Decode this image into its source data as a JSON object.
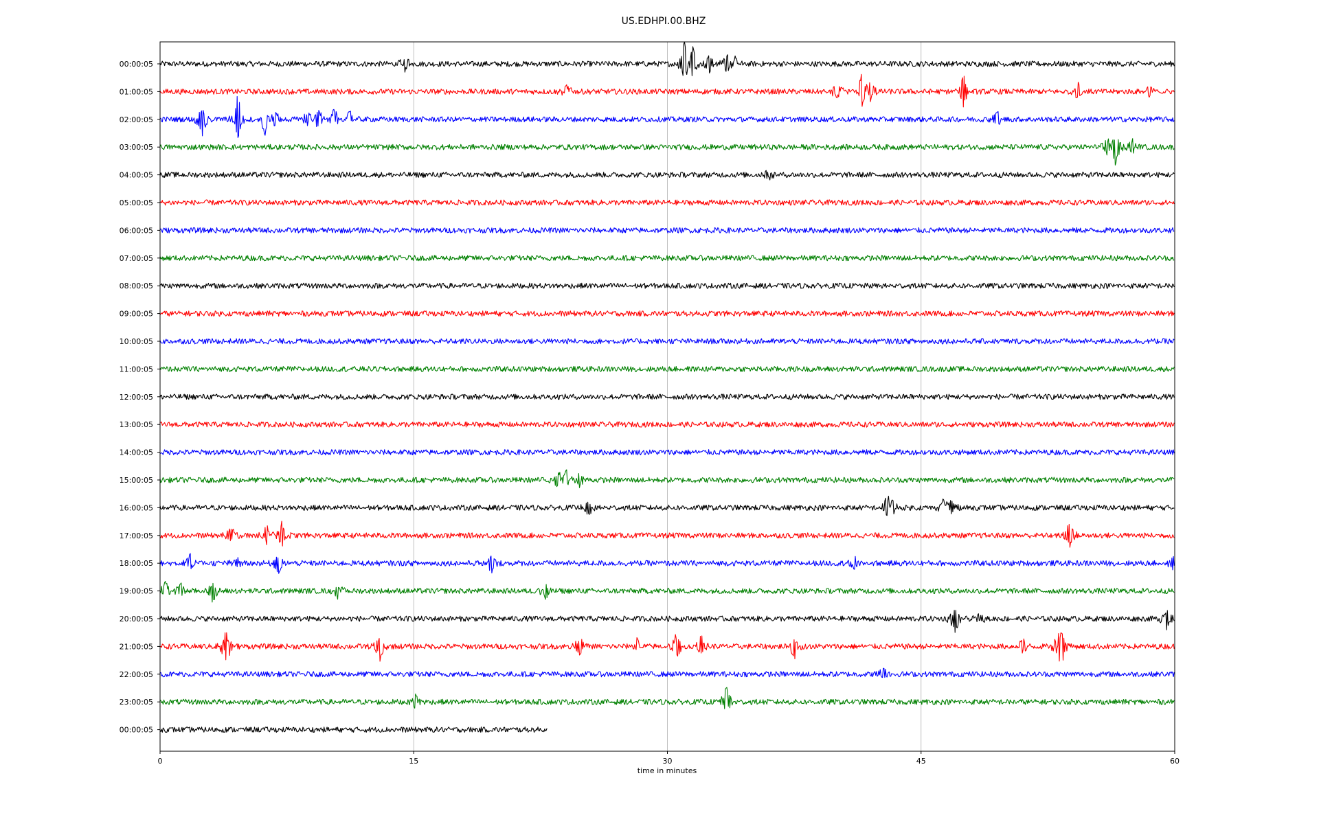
{
  "chart_data": {
    "type": "line",
    "title": "US.EDHPI.00.BHZ",
    "xlabel": "time in minutes",
    "ylabel": "",
    "xlim": [
      0,
      60
    ],
    "x_ticks": [
      "0",
      "15",
      "30",
      "45",
      "60"
    ],
    "grid": "vertical",
    "color_cycle": [
      "#000000",
      "#ff0000",
      "#0000ff",
      "#008000"
    ],
    "noise_amplitude": 1.0,
    "rows": [
      {
        "label": "00:00:05",
        "color": "#000000",
        "end_minute": 60,
        "events": [
          [
            14.5,
            5
          ],
          [
            31.0,
            12
          ],
          [
            31.5,
            8
          ],
          [
            32.5,
            6
          ],
          [
            33.5,
            5
          ],
          [
            34.0,
            3
          ]
        ]
      },
      {
        "label": "01:00:05",
        "color": "#ff0000",
        "end_minute": 60,
        "events": [
          [
            24.0,
            4
          ],
          [
            40.0,
            6
          ],
          [
            41.5,
            9
          ],
          [
            42.0,
            6
          ],
          [
            47.5,
            10
          ],
          [
            54.3,
            6
          ],
          [
            58.5,
            4
          ]
        ]
      },
      {
        "label": "02:00:05",
        "color": "#0000ff",
        "end_minute": 60,
        "events": [
          [
            2.5,
            -9
          ],
          [
            4.6,
            14
          ],
          [
            6.2,
            -8
          ],
          [
            6.8,
            5
          ],
          [
            8.7,
            4
          ],
          [
            9.4,
            -6
          ],
          [
            10.3,
            5
          ],
          [
            11.2,
            4
          ],
          [
            49.5,
            4
          ]
        ]
      },
      {
        "label": "03:00:05",
        "color": "#008000",
        "end_minute": 60,
        "events": [
          [
            56.0,
            4
          ],
          [
            56.5,
            -9
          ],
          [
            57.5,
            4
          ]
        ]
      },
      {
        "label": "04:00:05",
        "color": "#000000",
        "end_minute": 60,
        "events": [
          [
            36.0,
            3
          ]
        ]
      },
      {
        "label": "05:00:05",
        "color": "#ff0000",
        "end_minute": 60,
        "events": []
      },
      {
        "label": "06:00:05",
        "color": "#0000ff",
        "end_minute": 60,
        "events": []
      },
      {
        "label": "07:00:05",
        "color": "#008000",
        "end_minute": 60,
        "events": []
      },
      {
        "label": "08:00:05",
        "color": "#000000",
        "end_minute": 60,
        "events": []
      },
      {
        "label": "09:00:05",
        "color": "#ff0000",
        "end_minute": 60,
        "events": []
      },
      {
        "label": "10:00:05",
        "color": "#0000ff",
        "end_minute": 60,
        "events": []
      },
      {
        "label": "11:00:05",
        "color": "#008000",
        "end_minute": 60,
        "events": []
      },
      {
        "label": "12:00:05",
        "color": "#000000",
        "end_minute": 60,
        "events": []
      },
      {
        "label": "13:00:05",
        "color": "#ff0000",
        "end_minute": 60,
        "events": []
      },
      {
        "label": "14:00:05",
        "color": "#0000ff",
        "end_minute": 60,
        "events": []
      },
      {
        "label": "15:00:05",
        "color": "#008000",
        "end_minute": 60,
        "events": [
          [
            23.5,
            5
          ],
          [
            24.0,
            5
          ],
          [
            24.8,
            4
          ]
        ]
      },
      {
        "label": "16:00:05",
        "color": "#000000",
        "end_minute": 60,
        "events": [
          [
            25.3,
            -5
          ],
          [
            43.0,
            6
          ],
          [
            43.3,
            -5
          ],
          [
            46.3,
            5
          ],
          [
            46.8,
            4
          ]
        ]
      },
      {
        "label": "17:00:05",
        "color": "#ff0000",
        "end_minute": 60,
        "events": [
          [
            4.2,
            4
          ],
          [
            6.3,
            5
          ],
          [
            7.2,
            7
          ],
          [
            53.8,
            8
          ]
        ]
      },
      {
        "label": "18:00:05",
        "color": "#0000ff",
        "end_minute": 60,
        "events": [
          [
            1.8,
            4
          ],
          [
            4.5,
            3
          ],
          [
            7.0,
            -5
          ],
          [
            19.6,
            -5
          ],
          [
            41.0,
            4
          ],
          [
            59.9,
            5
          ]
        ]
      },
      {
        "label": "19:00:05",
        "color": "#008000",
        "end_minute": 60,
        "events": [
          [
            0.3,
            5
          ],
          [
            1.2,
            4
          ],
          [
            3.1,
            -6
          ],
          [
            10.5,
            4
          ],
          [
            22.8,
            -4
          ]
        ]
      },
      {
        "label": "20:00:05",
        "color": "#000000",
        "end_minute": 60,
        "events": [
          [
            47.0,
            -8
          ],
          [
            48.5,
            3
          ],
          [
            59.5,
            -6
          ]
        ]
      },
      {
        "label": "21:00:05",
        "color": "#ff0000",
        "end_minute": 60,
        "events": [
          [
            3.8,
            6
          ],
          [
            4.0,
            -7
          ],
          [
            13.0,
            -7
          ],
          [
            24.8,
            5
          ],
          [
            28.2,
            4
          ],
          [
            30.5,
            -8
          ],
          [
            32.0,
            5
          ],
          [
            37.5,
            -6
          ],
          [
            51.0,
            5
          ],
          [
            53.0,
            6
          ],
          [
            53.3,
            -12
          ]
        ]
      },
      {
        "label": "22:00:05",
        "color": "#0000ff",
        "end_minute": 60,
        "events": [
          [
            42.8,
            4
          ]
        ]
      },
      {
        "label": "23:00:05",
        "color": "#008000",
        "end_minute": 60,
        "events": [
          [
            15.1,
            4
          ],
          [
            33.5,
            8
          ]
        ]
      },
      {
        "label": "00:00:05",
        "color": "#000000",
        "end_minute": 22.9,
        "events": []
      }
    ]
  }
}
